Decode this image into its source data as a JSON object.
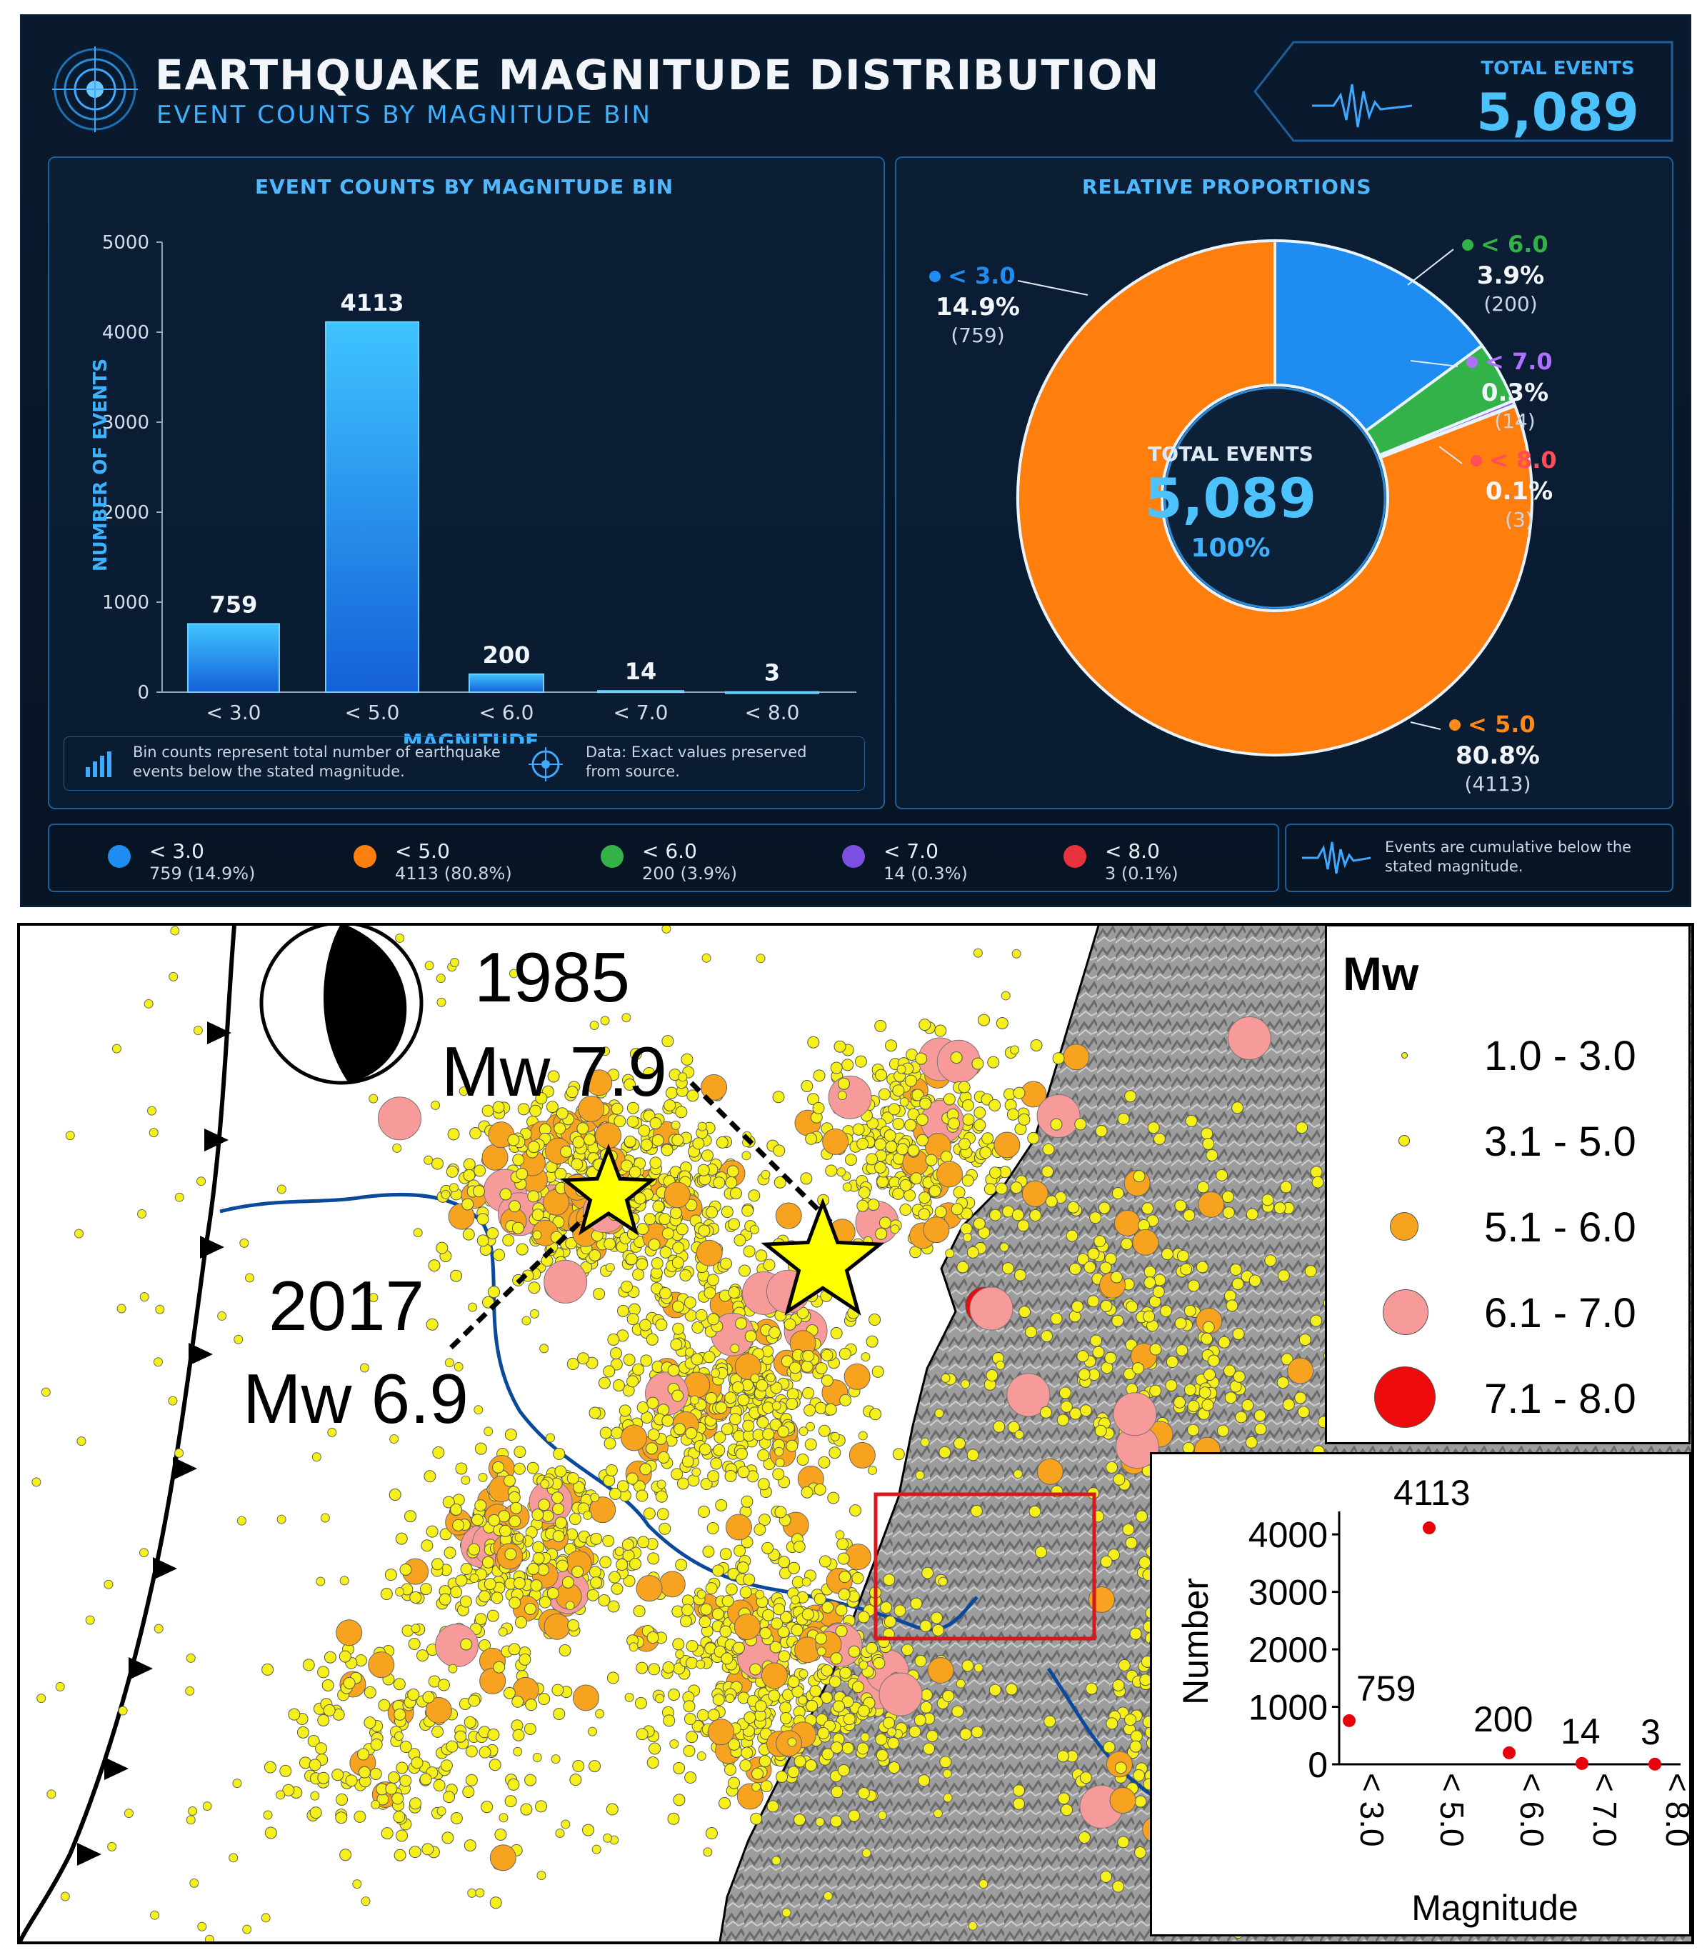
{
  "dashboard": {
    "title": "EARTHQUAKE MAGNITUDE DISTRIBUTION",
    "subtitle": "EVENT COUNTS BY MAGNITUDE BIN",
    "total_label": "TOTAL EVENTS",
    "total_value": "5,089",
    "bar_panel_title": "EVENT COUNTS BY MAGNITUDE BIN",
    "pie_panel_title": "RELATIVE PROPORTIONS",
    "footnote_left": "Bin counts represent total number of earthquake events below the stated magnitude.",
    "footnote_right": "Data: Exact values preserved from source.",
    "center_label": "TOTAL EVENTS",
    "center_value": "5,089",
    "center_pct": "100%",
    "cumulative_note": "Events are cumulative below the stated magnitude.",
    "colors": {
      "blue": "#1e8cf0",
      "orange": "#ff7f0e",
      "green": "#33b24a",
      "purple": "#7b4fe0",
      "red": "#e8323c",
      "accent": "#3fb2ff"
    },
    "legend": [
      {
        "name": "< 3.0",
        "count": "759",
        "pct": "(14.9%)",
        "color": "#1e8cf0"
      },
      {
        "name": "< 5.0",
        "count": "4113",
        "pct": "(80.8%)",
        "color": "#ff7f0e"
      },
      {
        "name": "< 6.0",
        "count": "200",
        "pct": "(3.9%)",
        "color": "#33b24a"
      },
      {
        "name": "< 7.0",
        "count": "14",
        "pct": "(0.3%)",
        "color": "#7b4fe0"
      },
      {
        "name": "< 8.0",
        "count": "3",
        "pct": "(0.1%)",
        "color": "#e8323c"
      }
    ],
    "pie_labels": [
      {
        "name": "< 3.0",
        "pct": "14.9%",
        "count": "(759)",
        "color": "#1e8cf0"
      },
      {
        "name": "< 6.0",
        "pct": "3.9%",
        "count": "(200)",
        "color": "#33b24a"
      },
      {
        "name": "< 7.0",
        "pct": "0.3%",
        "count": "(14)",
        "color": "#b070ff"
      },
      {
        "name": "< 8.0",
        "pct": "0.1%",
        "count": "(3)",
        "color": "#ff4d5a"
      },
      {
        "name": "< 5.0",
        "pct": "80.8%",
        "count": "(4113)",
        "color": "#ff8a1a"
      }
    ]
  },
  "map": {
    "event_1985_year": "1985",
    "event_1985_mag": "Mw 7.9",
    "event_2017_year": "2017",
    "event_2017_mag": "Mw 6.9",
    "legend_title": "Mw",
    "legend_items": [
      {
        "label": "1.0 - 3.0",
        "color": "#f6f01a"
      },
      {
        "label": "3.1 - 5.0",
        "color": "#f6f01a"
      },
      {
        "label": "5.1 - 6.0",
        "color": "#f7a320"
      },
      {
        "label": "6.1 - 7.0",
        "color": "#f69a9a"
      },
      {
        "label": "7.1 - 8.0",
        "color": "#ee0b0b"
      }
    ]
  },
  "chart_data": [
    {
      "type": "bar",
      "title": "EVENT COUNTS BY MAGNITUDE BIN",
      "xlabel": "MAGNITUDE",
      "ylabel": "NUMBER OF EVENTS",
      "categories": [
        "< 3.0",
        "< 5.0",
        "< 6.0",
        "< 7.0",
        "< 8.0"
      ],
      "values": [
        759,
        4113,
        200,
        14,
        3
      ],
      "ylim": [
        0,
        5000
      ],
      "yticks": [
        0,
        1000,
        2000,
        3000,
        4000,
        5000
      ]
    },
    {
      "type": "pie",
      "title": "RELATIVE PROPORTIONS",
      "categories": [
        "< 3.0",
        "< 6.0",
        "< 7.0",
        "< 8.0",
        "< 5.0"
      ],
      "values": [
        759,
        200,
        14,
        3,
        4113
      ],
      "percentages": [
        "14.9%",
        "3.9%",
        "0.3%",
        "0.1%",
        "80.8%"
      ]
    },
    {
      "type": "scatter",
      "xlabel": "Magnitude",
      "ylabel": "Number",
      "categories": [
        "< 3.0",
        "< 5.0",
        "< 6.0",
        "< 7.0",
        "< 8.0"
      ],
      "values": [
        759,
        4113,
        200,
        14,
        3
      ],
      "yticks": [
        0,
        1000,
        2000,
        3000,
        4000
      ],
      "ylim": [
        0,
        4300
      ],
      "point_color": "#e8000b"
    }
  ]
}
